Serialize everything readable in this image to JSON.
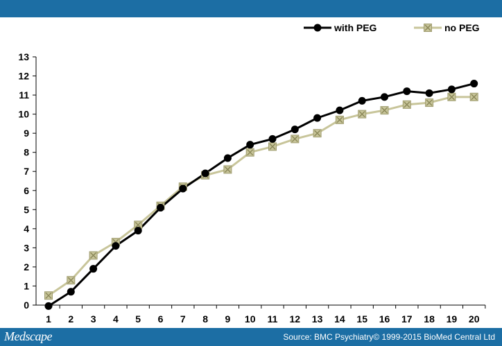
{
  "footer": {
    "logo": "Medscape",
    "source": "Source: BMC Psychiatry© 1999-2015 BioMed Central Ltd"
  },
  "chart_data": {
    "type": "line",
    "x": [
      1,
      2,
      3,
      4,
      5,
      6,
      7,
      8,
      9,
      10,
      11,
      12,
      13,
      14,
      15,
      16,
      17,
      18,
      19,
      20
    ],
    "ylim": [
      0,
      13
    ],
    "yticks": [
      0,
      1,
      2,
      3,
      4,
      5,
      6,
      7,
      8,
      9,
      10,
      11,
      12,
      13
    ],
    "grid": false,
    "legend_position": "top-right",
    "series": [
      {
        "name": "with PEG",
        "color": "#000000",
        "marker": "circle",
        "values": [
          -0.05,
          0.7,
          1.9,
          3.1,
          3.9,
          5.1,
          6.1,
          6.9,
          7.7,
          8.4,
          8.7,
          9.2,
          9.8,
          10.2,
          10.7,
          10.9,
          11.2,
          11.1,
          11.3,
          11.6
        ]
      },
      {
        "name": "no PEG",
        "color": "#c8c59a",
        "marker": "square-x",
        "values": [
          0.5,
          1.3,
          2.6,
          3.3,
          4.2,
          5.2,
          6.2,
          6.8,
          7.1,
          8.0,
          8.3,
          8.7,
          9.0,
          9.7,
          10.0,
          10.2,
          10.5,
          10.6,
          10.9,
          10.9
        ]
      }
    ]
  }
}
